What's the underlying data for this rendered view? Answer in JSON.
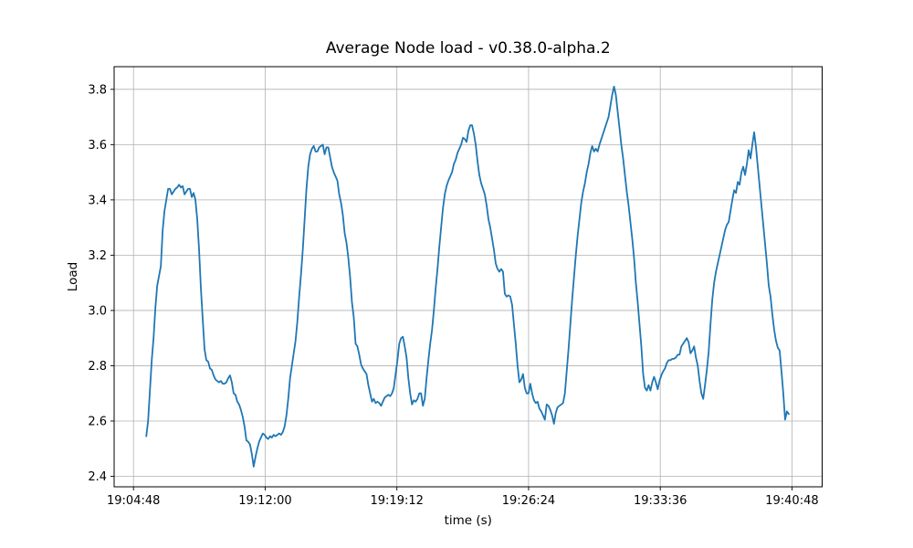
{
  "figure": {
    "background": "#ffffff"
  },
  "chart_data": {
    "type": "line",
    "title": "Average Node load  -  v0.38.0-alpha.2",
    "xlabel": "time (s)",
    "ylabel": "Load",
    "grid": true,
    "legend_position": "none",
    "line_color": "#1f77b4",
    "grid_color": "#b0b0b0",
    "spine_color": "#000000",
    "x_tick_labels": [
      "19:04:48",
      "19:12:00",
      "19:19:12",
      "19:26:24",
      "19:33:36",
      "19:40:48"
    ],
    "x_tick_seconds": [
      0,
      432,
      864,
      1296,
      1728,
      2160
    ],
    "y_ticks": [
      2.4,
      2.6,
      2.8,
      3.0,
      3.2,
      3.4,
      3.6,
      3.8
    ],
    "xlim": [
      -63.5,
      2259
    ],
    "ylim": [
      2.362,
      3.882
    ],
    "series": [
      {
        "t0_seconds": 42,
        "dt_seconds": 5.97,
        "values": [
          2.545,
          2.6,
          2.71,
          2.82,
          2.9,
          3.01,
          3.09,
          3.125,
          3.16,
          3.29,
          3.36,
          3.4,
          3.44,
          3.44,
          3.42,
          3.43,
          3.44,
          3.445,
          3.455,
          3.445,
          3.45,
          3.42,
          3.43,
          3.44,
          3.44,
          3.41,
          3.425,
          3.4,
          3.33,
          3.22,
          3.08,
          2.97,
          2.86,
          2.82,
          2.815,
          2.79,
          2.785,
          2.765,
          2.75,
          2.745,
          2.74,
          2.745,
          2.735,
          2.735,
          2.74,
          2.755,
          2.765,
          2.74,
          2.7,
          2.695,
          2.67,
          2.66,
          2.64,
          2.615,
          2.58,
          2.53,
          2.525,
          2.515,
          2.48,
          2.435,
          2.47,
          2.5,
          2.525,
          2.54,
          2.555,
          2.55,
          2.54,
          2.535,
          2.545,
          2.54,
          2.55,
          2.545,
          2.55,
          2.555,
          2.55,
          2.56,
          2.58,
          2.62,
          2.68,
          2.755,
          2.8,
          2.845,
          2.89,
          2.96,
          3.05,
          3.13,
          3.22,
          3.33,
          3.44,
          3.52,
          3.565,
          3.585,
          3.595,
          3.575,
          3.575,
          3.59,
          3.595,
          3.6,
          3.565,
          3.59,
          3.59,
          3.555,
          3.52,
          3.5,
          3.485,
          3.47,
          3.42,
          3.39,
          3.345,
          3.28,
          3.245,
          3.19,
          3.12,
          3.03,
          2.975,
          2.88,
          2.87,
          2.84,
          2.805,
          2.79,
          2.78,
          2.77,
          2.73,
          2.7,
          2.67,
          2.68,
          2.665,
          2.67,
          2.665,
          2.655,
          2.67,
          2.685,
          2.69,
          2.695,
          2.69,
          2.7,
          2.72,
          2.77,
          2.82,
          2.88,
          2.9,
          2.905,
          2.87,
          2.83,
          2.755,
          2.7,
          2.66,
          2.675,
          2.67,
          2.68,
          2.7,
          2.7,
          2.655,
          2.68,
          2.755,
          2.82,
          2.88,
          2.93,
          3.0,
          3.08,
          3.15,
          3.23,
          3.3,
          3.37,
          3.42,
          3.45,
          3.47,
          3.485,
          3.5,
          3.53,
          3.545,
          3.57,
          3.585,
          3.6,
          3.625,
          3.62,
          3.61,
          3.65,
          3.67,
          3.67,
          3.64,
          3.6,
          3.54,
          3.49,
          3.46,
          3.44,
          3.42,
          3.38,
          3.33,
          3.3,
          3.26,
          3.22,
          3.17,
          3.15,
          3.14,
          3.15,
          3.14,
          3.06,
          3.05,
          3.055,
          3.05,
          3.02,
          2.95,
          2.88,
          2.8,
          2.74,
          2.75,
          2.77,
          2.72,
          2.7,
          2.7,
          2.735,
          2.7,
          2.675,
          2.665,
          2.67,
          2.645,
          2.635,
          2.62,
          2.605,
          2.66,
          2.655,
          2.64,
          2.62,
          2.59,
          2.63,
          2.65,
          2.655,
          2.66,
          2.665,
          2.7,
          2.78,
          2.86,
          2.95,
          3.04,
          3.12,
          3.2,
          3.27,
          3.33,
          3.39,
          3.43,
          3.46,
          3.5,
          3.53,
          3.57,
          3.595,
          3.575,
          3.585,
          3.575,
          3.6,
          3.62,
          3.64,
          3.66,
          3.68,
          3.7,
          3.74,
          3.78,
          3.81,
          3.78,
          3.72,
          3.66,
          3.6,
          3.55,
          3.49,
          3.43,
          3.38,
          3.32,
          3.26,
          3.19,
          3.1,
          3.03,
          2.95,
          2.87,
          2.77,
          2.72,
          2.71,
          2.73,
          2.71,
          2.74,
          2.76,
          2.74,
          2.715,
          2.745,
          2.765,
          2.78,
          2.79,
          2.81,
          2.82,
          2.82,
          2.825,
          2.825,
          2.83,
          2.84,
          2.84,
          2.87,
          2.88,
          2.89,
          2.9,
          2.885,
          2.845,
          2.855,
          2.87,
          2.83,
          2.8,
          2.745,
          2.7,
          2.68,
          2.73,
          2.785,
          2.85,
          2.95,
          3.04,
          3.1,
          3.14,
          3.17,
          3.2,
          3.23,
          3.26,
          3.29,
          3.31,
          3.32,
          3.36,
          3.4,
          3.435,
          3.425,
          3.465,
          3.455,
          3.5,
          3.52,
          3.49,
          3.53,
          3.58,
          3.55,
          3.6,
          3.645,
          3.59,
          3.52,
          3.45,
          3.38,
          3.31,
          3.24,
          3.17,
          3.09,
          3.05,
          2.985,
          2.93,
          2.89,
          2.865,
          2.855,
          2.78,
          2.7,
          2.605,
          2.635,
          2.625
        ]
      }
    ]
  }
}
